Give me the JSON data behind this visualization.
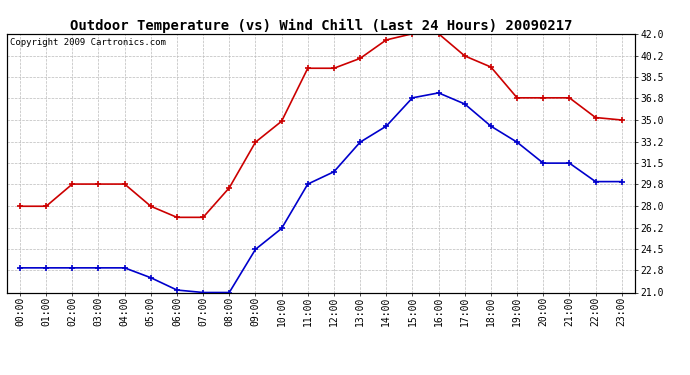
{
  "title": "Outdoor Temperature (vs) Wind Chill (Last 24 Hours) 20090217",
  "copyright": "Copyright 2009 Cartronics.com",
  "hours": [
    "00:00",
    "01:00",
    "02:00",
    "03:00",
    "04:00",
    "05:00",
    "06:00",
    "07:00",
    "08:00",
    "09:00",
    "10:00",
    "11:00",
    "12:00",
    "13:00",
    "14:00",
    "15:00",
    "16:00",
    "17:00",
    "18:00",
    "19:00",
    "20:00",
    "21:00",
    "22:00",
    "23:00"
  ],
  "temp": [
    28.0,
    28.0,
    29.8,
    29.8,
    29.8,
    28.0,
    27.1,
    27.1,
    29.5,
    33.2,
    34.9,
    39.2,
    39.2,
    40.0,
    41.5,
    42.0,
    42.0,
    40.2,
    39.3,
    36.8,
    36.8,
    36.8,
    35.2,
    35.0
  ],
  "windchill": [
    23.0,
    23.0,
    23.0,
    23.0,
    23.0,
    22.2,
    21.2,
    21.0,
    21.0,
    24.5,
    26.2,
    29.8,
    30.8,
    33.2,
    34.5,
    36.8,
    37.2,
    36.3,
    34.5,
    33.2,
    31.5,
    31.5,
    30.0,
    30.0
  ],
  "temp_color": "#cc0000",
  "windchill_color": "#0000cc",
  "bg_color": "#ffffff",
  "grid_color": "#bbbbbb",
  "ylim": [
    21.0,
    42.0
  ],
  "yticks_right": [
    21.0,
    22.8,
    24.5,
    26.2,
    28.0,
    29.8,
    31.5,
    33.2,
    35.0,
    36.8,
    38.5,
    40.2,
    42.0
  ],
  "title_fontsize": 10,
  "copyright_fontsize": 6.5,
  "tick_fontsize": 7,
  "marker": "+",
  "markersize": 5,
  "markeredgewidth": 1.2,
  "linewidth": 1.2
}
